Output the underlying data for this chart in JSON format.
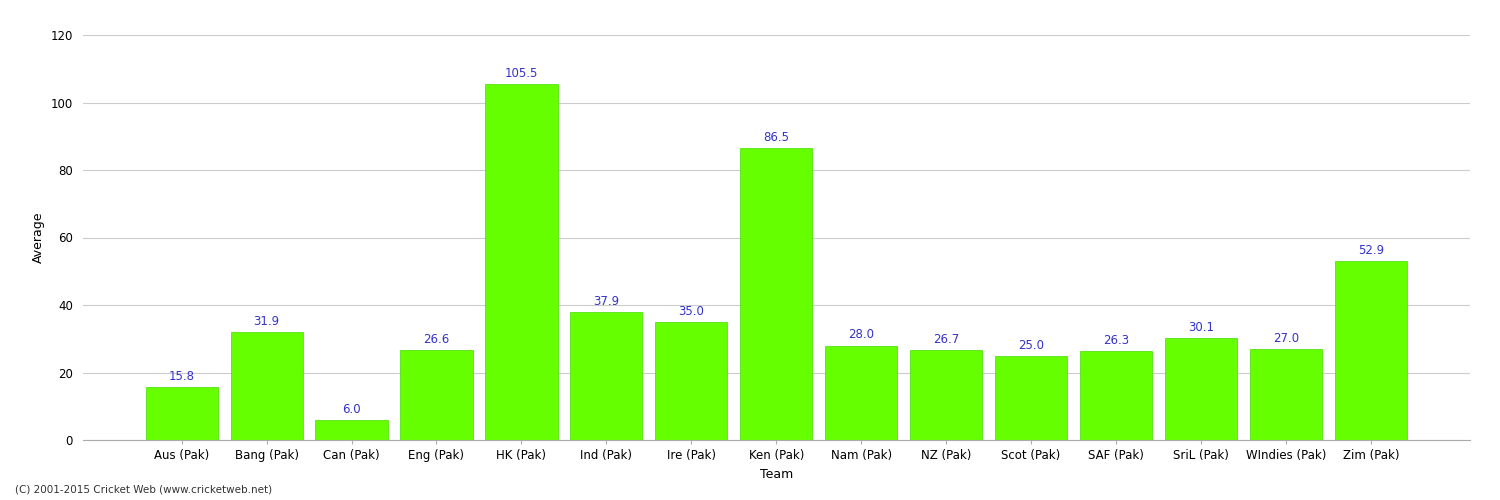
{
  "categories": [
    "Aus (Pak)",
    "Bang (Pak)",
    "Can (Pak)",
    "Eng (Pak)",
    "HK (Pak)",
    "Ind (Pak)",
    "Ire (Pak)",
    "Ken (Pak)",
    "Nam (Pak)",
    "NZ (Pak)",
    "Scot (Pak)",
    "SAF (Pak)",
    "SriL (Pak)",
    "WIndies (Pak)",
    "Zim (Pak)"
  ],
  "values": [
    15.8,
    31.9,
    6.0,
    26.6,
    105.5,
    37.9,
    35.0,
    86.5,
    28.0,
    26.7,
    25.0,
    26.3,
    30.1,
    27.0,
    52.9
  ],
  "bar_color": "#66ff00",
  "bar_edge_color": "#44dd00",
  "value_label_color": "#3333cc",
  "ylabel": "Average",
  "xlabel": "Team",
  "ylim": [
    0,
    120
  ],
  "yticks": [
    0,
    20,
    40,
    60,
    80,
    100,
    120
  ],
  "background_color": "#ffffff",
  "grid_color": "#cccccc",
  "value_fontsize": 8.5,
  "axis_label_fontsize": 9,
  "tick_fontsize": 8.5,
  "footer_text": "(C) 2001-2015 Cricket Web (www.cricketweb.net)"
}
